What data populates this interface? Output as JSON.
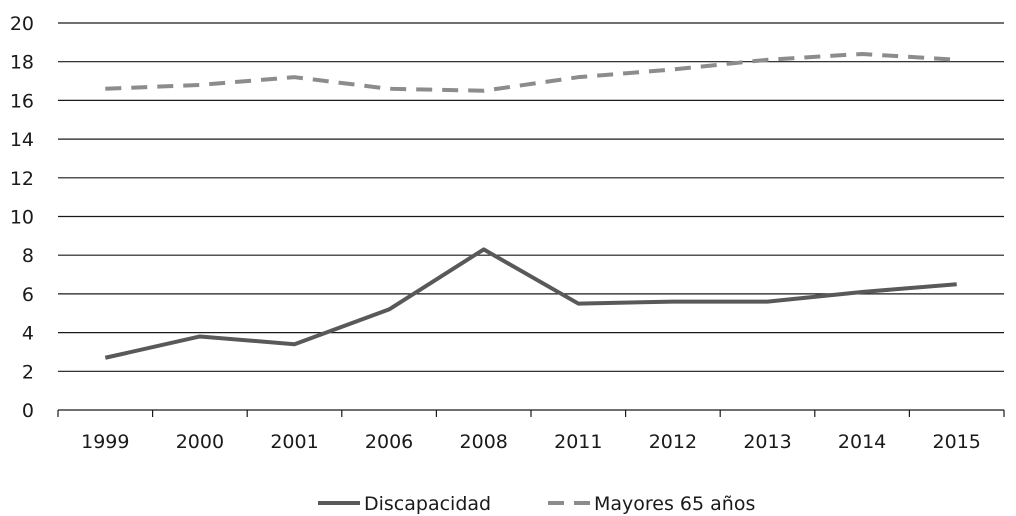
{
  "chart_data": {
    "type": "line",
    "title": "",
    "xlabel": "",
    "ylabel": "",
    "categories": [
      "1999",
      "2000",
      "2001",
      "2006",
      "2008",
      "2011",
      "2012",
      "2013",
      "2014",
      "2015"
    ],
    "ylim": [
      0,
      20
    ],
    "yticks": [
      "0",
      "2",
      "4",
      "6",
      "8",
      "10",
      "12",
      "14",
      "16",
      "18",
      "20"
    ],
    "grid": "horizontal",
    "legend_position": "bottom",
    "series": [
      {
        "name": "Discapacidad",
        "style": "solid",
        "color": "#595959",
        "values": [
          2.7,
          3.8,
          3.4,
          5.2,
          8.3,
          5.5,
          5.6,
          5.6,
          6.1,
          6.5
        ]
      },
      {
        "name": "Mayores 65 años",
        "style": "dashed",
        "color": "#8c8c8c",
        "values": [
          16.6,
          16.8,
          17.2,
          16.6,
          16.5,
          17.2,
          17.6,
          18.1,
          18.4,
          18.1
        ]
      }
    ]
  }
}
